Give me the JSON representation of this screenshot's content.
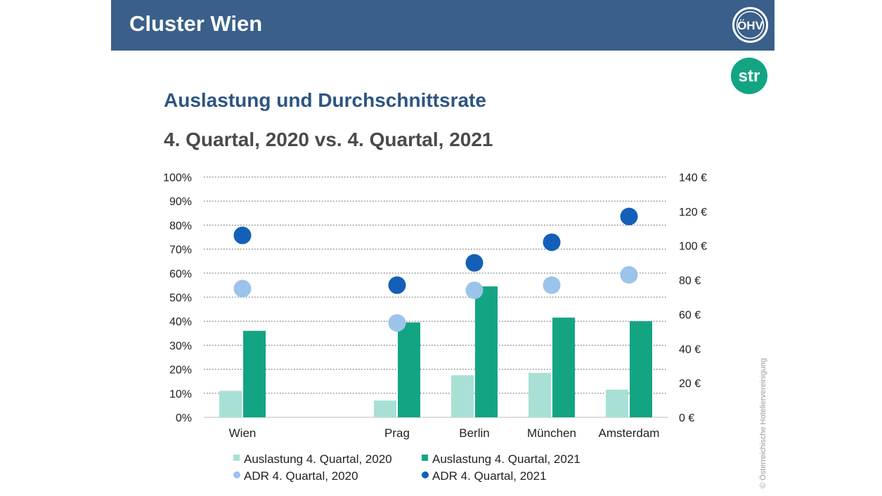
{
  "header": {
    "title": "Cluster Wien",
    "logo_text": "ÖHV"
  },
  "str_logo": {
    "text": "str"
  },
  "copyright": "© Österreichische Hoteliervereinigung",
  "colors": {
    "header_bg": "#3a5f8a",
    "occ_2020": "#a8e0d6",
    "occ_2021": "#13a583",
    "adr_2020": "#9cc3ea",
    "adr_2021": "#1460b8",
    "str_logo": "#13a583"
  },
  "chart_data": {
    "type": "bar",
    "title": "Auslastung und Durchschnittsrate",
    "subtitle": "4. Quartal, 2020 vs. 4. Quartal, 2021",
    "categories": [
      "Wien",
      "",
      "Prag",
      "Berlin",
      "München",
      "Amsterdam"
    ],
    "series": [
      {
        "name": "Auslastung 4. Quartal, 2020",
        "type": "bar",
        "axis": "left",
        "values": [
          11,
          null,
          7,
          17.5,
          18.5,
          11.5
        ]
      },
      {
        "name": "Auslastung 4. Quartal, 2021",
        "type": "bar",
        "axis": "left",
        "values": [
          36,
          null,
          39.5,
          54.5,
          41.5,
          40
        ]
      },
      {
        "name": "ADR 4. Quartal, 2020",
        "type": "scatter",
        "axis": "right",
        "values": [
          75,
          null,
          55,
          74,
          77,
          83
        ]
      },
      {
        "name": "ADR 4. Quartal, 2021",
        "type": "scatter",
        "axis": "right",
        "values": [
          106,
          null,
          77,
          90,
          102,
          117
        ]
      }
    ],
    "y_left": {
      "range": [
        0,
        100
      ],
      "ticks": [
        "0%",
        "10%",
        "20%",
        "30%",
        "40%",
        "50%",
        "60%",
        "70%",
        "80%",
        "90%",
        "100%"
      ]
    },
    "y_right": {
      "range": [
        0,
        140
      ],
      "ticks": [
        "0 €",
        "20 €",
        "40 €",
        "60 €",
        "80 €",
        "100 €",
        "120 €",
        "140 €"
      ]
    },
    "grid": "horizontal-dotted",
    "legend_position": "bottom"
  }
}
